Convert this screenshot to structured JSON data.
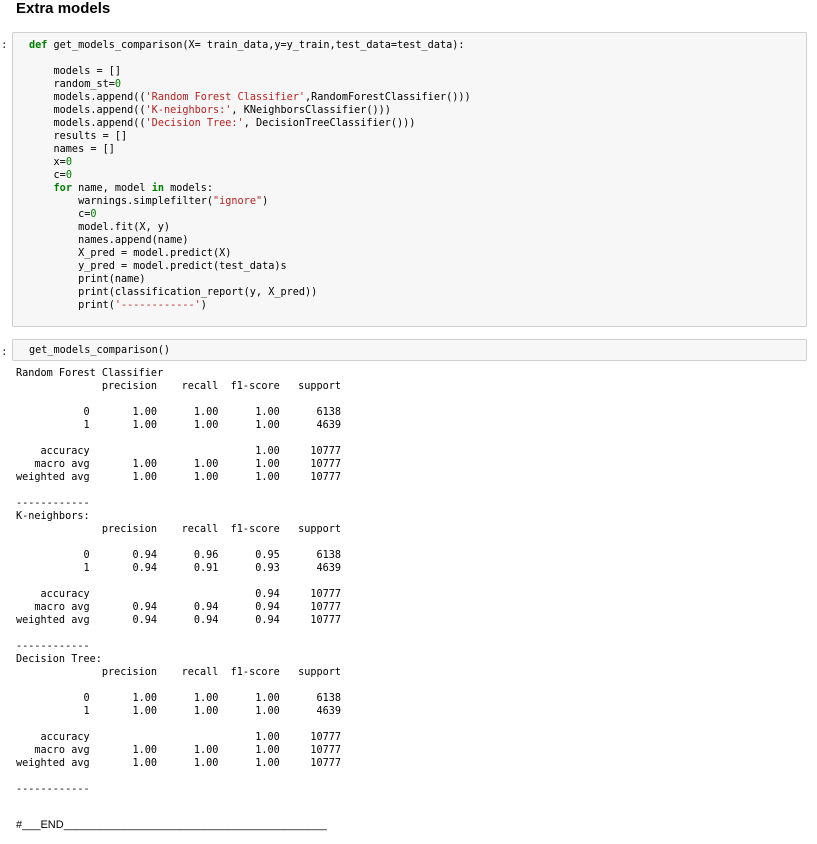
{
  "heading": "Extra models",
  "cells": {
    "def_cell": {
      "prompt": ":",
      "signature": "get_models_comparison(X= train_data,y=y_train,test_data=test_data):",
      "lines": [
        "    models = []",
        "    random_st=0",
        "    models.append(('Random Forest Classifier',RandomForestClassifier()))",
        "    models.append(('K-neighbors:', KNeighborsClassifier()))",
        "    models.append(('Decision Tree:', DecisionTreeClassifier()))",
        "    results = []",
        "    names = []",
        "    x=0",
        "    c=0",
        "    for name, model in models:",
        "        warnings.simplefilter(\"ignore\")",
        "        c=0",
        "        model.fit(X, y)",
        "        names.append(name)",
        "        X_pred = model.predict(X)",
        "        y_pred = model.predict(test_data)s",
        "        print(name)",
        "        print(classification_report(y, X_pred))",
        "        print('------------')"
      ]
    },
    "call_cell": {
      "prompt": ":",
      "code": "get_models_comparison()"
    }
  },
  "output": {
    "text": "Random Forest Classifier\n              precision    recall  f1-score   support\n\n           0       1.00      1.00      1.00      6138\n           1       1.00      1.00      1.00      4639\n\n    accuracy                           1.00     10777\n   macro avg       1.00      1.00      1.00     10777\nweighted avg       1.00      1.00      1.00     10777\n\n------------\nK-neighbors:\n              precision    recall  f1-score   support\n\n           0       0.94      0.96      0.95      6138\n           1       0.94      0.91      0.93      4639\n\n    accuracy                           0.94     10777\n   macro avg       0.94      0.94      0.94     10777\nweighted avg       0.94      0.94      0.94     10777\n\n------------\nDecision Tree:\n              precision    recall  f1-score   support\n\n           0       1.00      1.00      1.00      6138\n           1       1.00      1.00      1.00      4639\n\n    accuracy                           1.00     10777\n   macro avg       1.00      1.00      1.00     10777\nweighted avg       1.00      1.00      1.00     10777\n\n------------"
  },
  "footer": {
    "end_marker": "#___END___________________________________________"
  }
}
